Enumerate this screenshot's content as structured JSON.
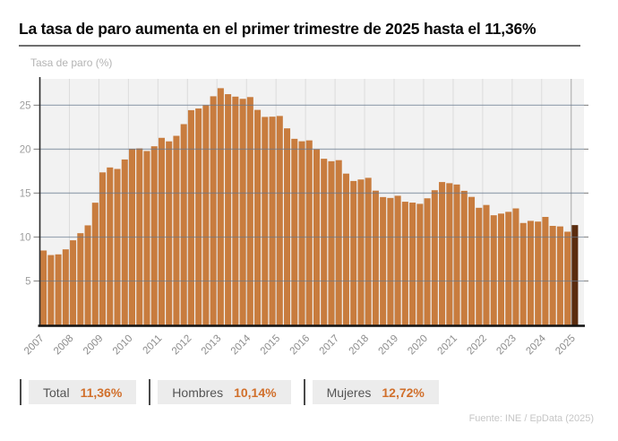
{
  "header": {
    "title": "La tasa de paro aumenta en el primer trimestre de 2025 hasta el 11,36%"
  },
  "chart_data": {
    "type": "bar",
    "title": "La tasa de paro aumenta en el primer trimestre de 2025 hasta el 11,36%",
    "ylabel": "Tasa de paro (%)",
    "xlabel": "",
    "frequency": "quarterly",
    "first_period": "2007T1",
    "last_period": "2025T1",
    "year_labels": [
      "2007",
      "2008",
      "2009",
      "2010",
      "2011",
      "2012",
      "2013",
      "2014",
      "2015",
      "2016",
      "2017",
      "2018",
      "2019",
      "2020",
      "2021",
      "2022",
      "2023",
      "2024",
      "2025"
    ],
    "yticks": [
      5,
      10,
      15,
      20,
      25
    ],
    "ylim": [
      0,
      28
    ],
    "grid": true,
    "legend_position": "bottom",
    "values": [
      8.47,
      7.95,
      8.03,
      8.6,
      9.63,
      10.44,
      11.33,
      13.91,
      17.36,
      17.92,
      17.75,
      18.83,
      20.05,
      20.09,
      19.79,
      20.33,
      21.29,
      20.89,
      21.52,
      22.85,
      24.44,
      24.63,
      25.02,
      26.02,
      26.94,
      26.26,
      25.98,
      25.73,
      25.93,
      24.47,
      23.67,
      23.7,
      23.78,
      22.37,
      21.18,
      20.9,
      21.0,
      20.0,
      18.91,
      18.63,
      18.75,
      17.22,
      16.38,
      16.55,
      16.74,
      15.28,
      14.55,
      14.45,
      14.7,
      14.02,
      13.92,
      13.78,
      14.41,
      15.33,
      16.26,
      16.13,
      15.98,
      15.26,
      14.57,
      13.33,
      13.65,
      12.48,
      12.67,
      12.87,
      13.26,
      11.6,
      11.84,
      11.76,
      12.29,
      11.27,
      11.21,
      10.61,
      11.36
    ],
    "highlight_last": true,
    "colors": {
      "bar": "#c87c3e",
      "highlight_bar": "#5a2c0f",
      "plot_bg": "#f2f2f2",
      "h_gridline": "rgba(100,118,140,0.6)",
      "v_gridline": "#dcdcdc",
      "v_gridline_last": "#a8a8a8",
      "axis": "#2b2b2b",
      "tick": "#8f8f8f",
      "tick_label": "#9e9e9e",
      "x_label": "#8c8c8c"
    }
  },
  "legend": {
    "items": [
      {
        "label": "Total",
        "value": "11,36%"
      },
      {
        "label": "Hombres",
        "value": "10,14%"
      },
      {
        "label": "Mujeres",
        "value": "12,72%"
      }
    ]
  },
  "footer": {
    "source": "Fuente: INE / EpData (2025)"
  }
}
